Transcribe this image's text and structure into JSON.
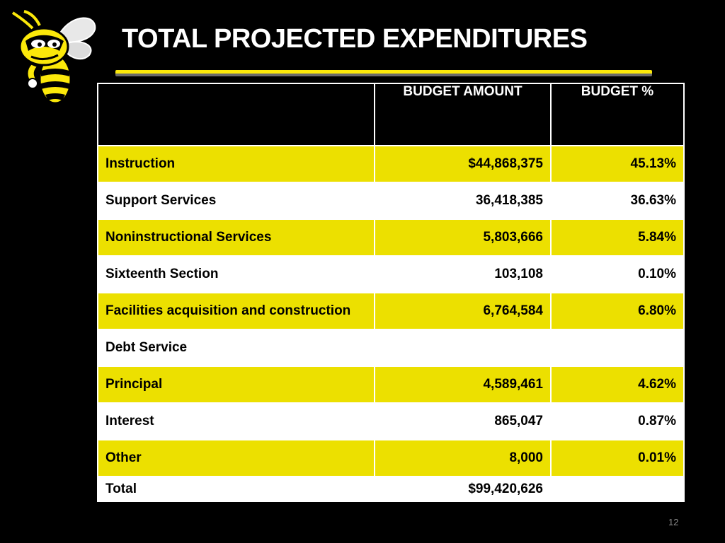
{
  "title": "TOTAL PROJECTED EXPENDITURES",
  "table": {
    "headers": [
      "",
      "BUDGET AMOUNT",
      "BUDGET %"
    ],
    "rows": [
      {
        "label": "Instruction",
        "amount": "$44,868,375",
        "percent": "45.13%"
      },
      {
        "label": "Support Services",
        "amount": "36,418,385",
        "percent": "36.63%"
      },
      {
        "label": "Noninstructional Services",
        "amount": "5,803,666",
        "percent": "5.84%"
      },
      {
        "label": "Sixteenth Section",
        "amount": "103,108",
        "percent": "0.10%"
      },
      {
        "label": "Facilities acquisition and construction",
        "amount": "6,764,584",
        "percent": "6.80%"
      },
      {
        "label": "Debt Service",
        "amount": "",
        "percent": ""
      },
      {
        "label": "Principal",
        "amount": "4,589,461",
        "percent": "4.62%"
      },
      {
        "label": "Interest",
        "amount": "865,047",
        "percent": "0.87%"
      },
      {
        "label": "Other",
        "amount": "8,000",
        "percent": "0.01%"
      },
      {
        "label": "Total",
        "amount": "$99,420,626",
        "percent": ""
      }
    ]
  },
  "page_number": "12",
  "colors": {
    "background": "#000000",
    "row_highlight": "#ece000",
    "row_plain": "#ffffff",
    "logo_yellow": "#fbe80a"
  },
  "icons": {
    "logo": "yellow-jacket-mascot-icon"
  }
}
